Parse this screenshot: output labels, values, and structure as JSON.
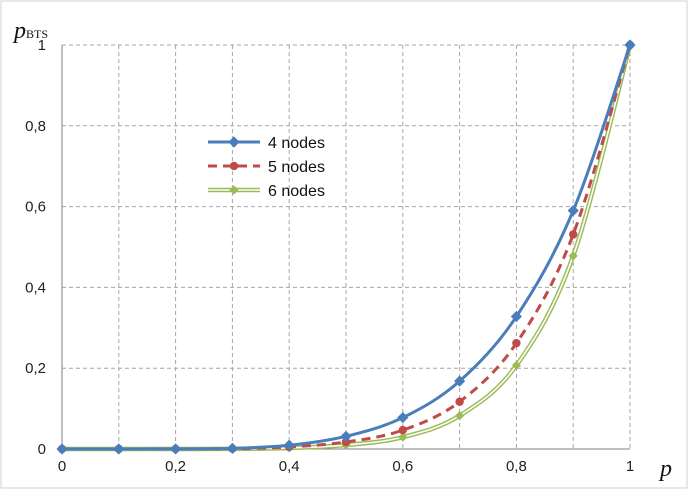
{
  "chart_data": {
    "type": "line",
    "title": "",
    "xlabel": "p",
    "ylabel": {
      "main": "p",
      "subscript": "BTS"
    },
    "xlim": [
      0,
      1
    ],
    "ylim": [
      0,
      1
    ],
    "x_ticks": [
      0,
      0.2,
      0.4,
      0.6,
      0.8,
      1
    ],
    "x_tick_labels": [
      "0",
      "0,2",
      "0,4",
      "0,6",
      "0,8",
      "1"
    ],
    "y_ticks": [
      0,
      0.2,
      0.4,
      0.6,
      0.8,
      1
    ],
    "y_tick_labels": [
      "0",
      "0,2",
      "0,4",
      "0,6",
      "0,8",
      "1"
    ],
    "grid": true,
    "grid_style": "dashed",
    "legend_position": "upper-left-inside",
    "x": [
      0,
      0.1,
      0.2,
      0.3,
      0.4,
      0.5,
      0.6,
      0.7,
      0.8,
      0.9,
      1
    ],
    "series": [
      {
        "name": "4 nodes",
        "color": "#4a7ebb",
        "line_style": "solid",
        "marker": "diamond",
        "values": [
          0,
          0,
          0.0002,
          0.0016,
          0.0092,
          0.0313,
          0.0778,
          0.168,
          0.328,
          0.59,
          1
        ]
      },
      {
        "name": "5 nodes",
        "color": "#be4b48",
        "line_style": "dashed",
        "marker": "circle",
        "values": [
          0,
          0,
          0.0001,
          0.0008,
          0.0051,
          0.0174,
          0.0467,
          0.117,
          0.262,
          0.531,
          1
        ]
      },
      {
        "name": "6 nodes",
        "color": "#9bbb59",
        "line_style": "double",
        "marker": "diamond",
        "values": [
          0,
          0,
          0,
          0.0004,
          0.0026,
          0.0098,
          0.0293,
          0.0824,
          0.207,
          0.478,
          1
        ]
      }
    ]
  }
}
